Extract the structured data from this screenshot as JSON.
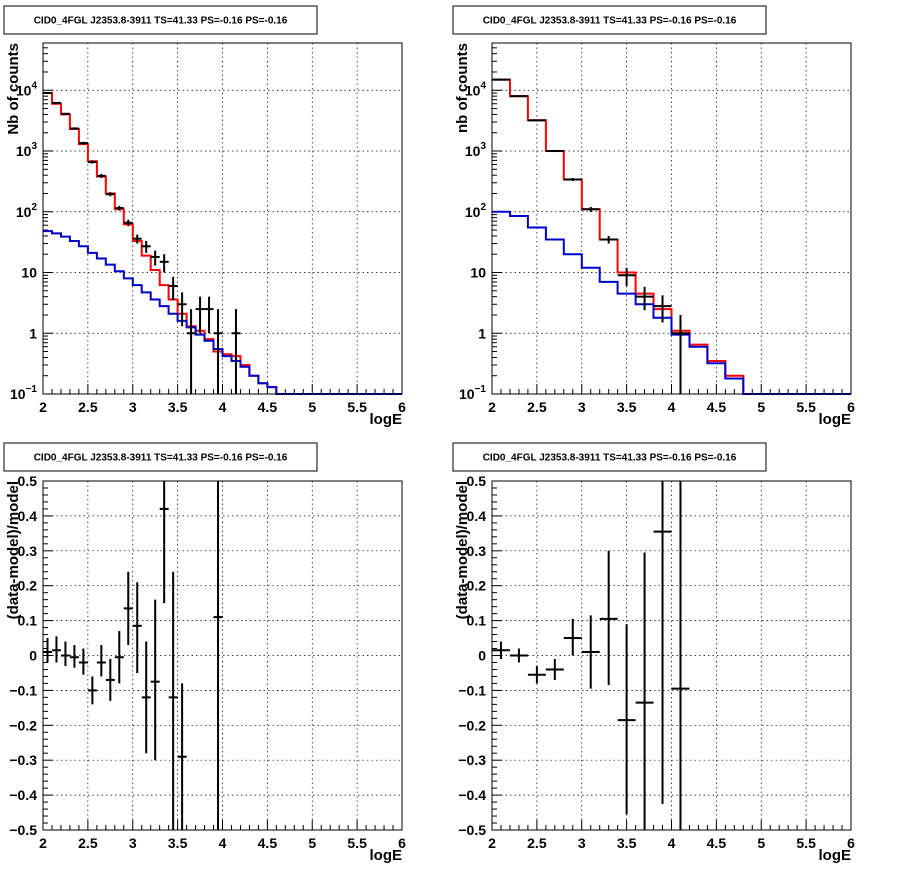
{
  "chart_data": [
    {
      "type": "line",
      "title": "CID0_4FGL J2353.8-3911 TS=41.33 PS=-0.16 PS=-0.16",
      "xlabel": "logE",
      "ylabel": "Nb of counts",
      "xlim": [
        2,
        6
      ],
      "ylim": [
        0.1,
        60000
      ],
      "yscale": "log",
      "xticks": [
        "2",
        "2.5",
        "3",
        "3.5",
        "4",
        "4.5",
        "5",
        "5.5",
        "6"
      ],
      "yticks": [
        {
          "value": 0.1,
          "label": "10",
          "sup": "−1"
        },
        {
          "value": 1,
          "label": "1",
          "sup": ""
        },
        {
          "value": 10,
          "label": "10",
          "sup": ""
        },
        {
          "value": 100,
          "label": "10",
          "sup": "2"
        },
        {
          "value": 1000,
          "label": "10",
          "sup": "3"
        },
        {
          "value": 10000,
          "label": "10",
          "sup": "4"
        }
      ],
      "grid": true,
      "series": [
        {
          "kind": "step",
          "color": "#ff0000",
          "edges": [
            2.0,
            2.1,
            2.2,
            2.3,
            2.4,
            2.5,
            2.6,
            2.7,
            2.8,
            2.9,
            3.0,
            3.1,
            3.2,
            3.3,
            3.4,
            3.5,
            3.6,
            3.7,
            3.8,
            3.9,
            4.0,
            4.1,
            4.2,
            4.3,
            4.4,
            4.5,
            4.6,
            4.7,
            4.8,
            4.9,
            5.0,
            5.1,
            5.2,
            5.3,
            5.4,
            5.5,
            5.6,
            5.7,
            5.8,
            5.9,
            6.0
          ],
          "values": [
            9000,
            6000,
            4000,
            2300,
            1300,
            680,
            380,
            200,
            110,
            62,
            33,
            19,
            11,
            6.2,
            3.6,
            2.1,
            1.3,
            1.1,
            0.8,
            0.5,
            0.45,
            0.42,
            0.3,
            0.2,
            0.15,
            0.13,
            0.1,
            0.1,
            0.1,
            0.1,
            0.1,
            0.1,
            0.1,
            0.1,
            0.1,
            0.1,
            0.1,
            0.1,
            0.1,
            0.1
          ]
        },
        {
          "kind": "step",
          "color": "#0000cc",
          "edges": [
            2.0,
            2.1,
            2.2,
            2.3,
            2.4,
            2.5,
            2.6,
            2.7,
            2.8,
            2.9,
            3.0,
            3.1,
            3.2,
            3.3,
            3.4,
            3.5,
            3.6,
            3.7,
            3.8,
            3.9,
            4.0,
            4.1,
            4.2,
            4.3,
            4.4,
            4.5,
            4.6,
            4.7,
            4.8,
            4.9,
            5.0,
            5.1,
            5.2,
            5.3,
            5.4,
            5.5,
            5.6,
            5.7,
            5.8,
            5.9,
            6.0
          ],
          "values": [
            48,
            44,
            39,
            33,
            27,
            21,
            17,
            13.5,
            10.5,
            8,
            6.2,
            4.7,
            3.6,
            2.8,
            2.1,
            1.6,
            1.25,
            0.95,
            0.75,
            0.55,
            0.42,
            0.35,
            0.28,
            0.2,
            0.15,
            0.13,
            0.1,
            0.1,
            0.1,
            0.1,
            0.1,
            0.1,
            0.1,
            0.1,
            0.1,
            0.1,
            0.1,
            0.1,
            0.1,
            0.1
          ]
        },
        {
          "kind": "errorbars",
          "color": "#000000",
          "x": [
            2.05,
            2.15,
            2.25,
            2.35,
            2.45,
            2.55,
            2.65,
            2.75,
            2.85,
            2.95,
            3.05,
            3.15,
            3.25,
            3.35,
            3.45,
            3.55,
            3.65,
            3.75,
            3.85,
            3.95,
            4.15
          ],
          "y": [
            9000,
            6200,
            4100,
            2350,
            1350,
            660,
            390,
            195,
            115,
            66,
            36,
            27,
            18,
            15,
            6,
            3,
            1,
            2.5,
            2.5,
            1,
            1
          ],
          "ylo": [
            8900,
            6100,
            4000,
            2250,
            1280,
            620,
            360,
            180,
            105,
            58,
            30,
            21,
            13,
            10,
            3.5,
            1.3,
            0.1,
            1,
            1,
            0.1,
            0.1
          ],
          "yhi": [
            9100,
            6300,
            4200,
            2450,
            1420,
            700,
            420,
            210,
            125,
            74,
            42,
            33,
            23,
            20,
            8.5,
            4.7,
            2.5,
            4,
            4,
            2.5,
            2.5
          ],
          "xerr": 0.05
        }
      ]
    },
    {
      "type": "line",
      "title": "CID0_4FGL J2353.8-3911 TS=41.33 PS=-0.16 PS=-0.16",
      "xlabel": "logE",
      "ylabel": "nb of counts",
      "xlim": [
        2,
        6
      ],
      "ylim": [
        0.1,
        60000
      ],
      "yscale": "log",
      "xticks": [
        "2",
        "2.5",
        "3",
        "3.5",
        "4",
        "4.5",
        "5",
        "5.5",
        "6"
      ],
      "yticks": [
        {
          "value": 0.1,
          "label": "10",
          "sup": "−1"
        },
        {
          "value": 1,
          "label": "1",
          "sup": ""
        },
        {
          "value": 10,
          "label": "10",
          "sup": ""
        },
        {
          "value": 100,
          "label": "10",
          "sup": "2"
        },
        {
          "value": 1000,
          "label": "10",
          "sup": "3"
        },
        {
          "value": 10000,
          "label": "10",
          "sup": "4"
        }
      ],
      "grid": true,
      "series": [
        {
          "kind": "step",
          "color": "#ff0000",
          "edges": [
            2.0,
            2.2,
            2.4,
            2.6,
            2.8,
            3.0,
            3.2,
            3.4,
            3.6,
            3.8,
            4.0,
            4.2,
            4.4,
            4.6,
            4.8,
            5.0,
            5.2,
            5.4,
            5.6,
            5.8,
            6.0
          ],
          "values": [
            15000,
            8000,
            3200,
            1000,
            340,
            110,
            35,
            10,
            4.5,
            2.5,
            1.1,
            0.65,
            0.35,
            0.2,
            0.1,
            0.1,
            0.1,
            0.1,
            0.1,
            0.1
          ]
        },
        {
          "kind": "step",
          "color": "#0000cc",
          "edges": [
            2.0,
            2.2,
            2.4,
            2.6,
            2.8,
            3.0,
            3.2,
            3.4,
            3.6,
            3.8,
            4.0,
            4.2,
            4.4,
            4.6,
            4.8,
            5.0,
            5.2,
            5.4,
            5.6,
            5.8,
            6.0
          ],
          "values": [
            100,
            85,
            55,
            35,
            20,
            12,
            7,
            4.5,
            3,
            1.8,
            0.95,
            0.6,
            0.32,
            0.18,
            0.1,
            0.1,
            0.1,
            0.1,
            0.1,
            0.1
          ]
        },
        {
          "kind": "errorbars",
          "color": "#000000",
          "x": [
            2.1,
            2.3,
            2.5,
            2.7,
            2.9,
            3.1,
            3.3,
            3.5,
            3.7,
            3.9,
            4.1
          ],
          "y": [
            15000,
            8000,
            3200,
            1000,
            340,
            110,
            35,
            9,
            4,
            2.8,
            1
          ],
          "ylo": [
            14800,
            7850,
            3100,
            960,
            320,
            100,
            30,
            6,
            2.4,
            1.5,
            0.1
          ],
          "yhi": [
            15200,
            8150,
            3300,
            1040,
            360,
            120,
            40,
            12,
            5.8,
            4.2,
            2
          ],
          "xerr": 0.1
        }
      ]
    },
    {
      "type": "scatter",
      "title": "CID0_4FGL J2353.8-3911 TS=41.33 PS=-0.16 PS=-0.16",
      "xlabel": "logE",
      "ylabel": "(data-model)/model",
      "xlim": [
        2,
        6
      ],
      "ylim": [
        -0.5,
        0.5
      ],
      "yscale": "linear",
      "xticks": [
        "2",
        "2.5",
        "3",
        "3.5",
        "4",
        "4.5",
        "5",
        "5.5",
        "6"
      ],
      "yticks": [
        {
          "value": -0.5,
          "label": "−0.5",
          "sup": ""
        },
        {
          "value": -0.4,
          "label": "−0.4",
          "sup": ""
        },
        {
          "value": -0.3,
          "label": "−0.3",
          "sup": ""
        },
        {
          "value": -0.2,
          "label": "−0.2",
          "sup": ""
        },
        {
          "value": -0.1,
          "label": "−0.1",
          "sup": ""
        },
        {
          "value": 0,
          "label": "0",
          "sup": ""
        },
        {
          "value": 0.1,
          "label": "0.1",
          "sup": ""
        },
        {
          "value": 0.2,
          "label": "0.2",
          "sup": ""
        },
        {
          "value": 0.3,
          "label": "0.3",
          "sup": ""
        },
        {
          "value": 0.4,
          "label": "0.4",
          "sup": ""
        },
        {
          "value": 0.5,
          "label": "0.5",
          "sup": ""
        }
      ],
      "grid": true,
      "series": [
        {
          "kind": "errorbars",
          "color": "#000000",
          "x": [
            2.05,
            2.15,
            2.25,
            2.35,
            2.45,
            2.55,
            2.65,
            2.75,
            2.85,
            2.95,
            3.05,
            3.15,
            3.25,
            3.35,
            3.45,
            3.55,
            3.95
          ],
          "y": [
            0.01,
            0.015,
            0.0,
            -0.005,
            -0.02,
            -0.1,
            -0.02,
            -0.07,
            -0.005,
            0.135,
            0.085,
            -0.12,
            -0.075,
            0.42,
            -0.12,
            -0.29,
            0.11
          ],
          "ylo": [
            -0.02,
            -0.02,
            -0.03,
            -0.035,
            -0.055,
            -0.14,
            -0.06,
            -0.13,
            -0.08,
            0.03,
            -0.05,
            -0.28,
            -0.3,
            0.15,
            -0.5,
            -0.5,
            -0.5
          ],
          "yhi": [
            0.05,
            0.055,
            0.04,
            0.03,
            0.02,
            -0.06,
            0.03,
            -0.01,
            0.07,
            0.24,
            0.21,
            0.04,
            0.16,
            0.5,
            0.24,
            -0.08,
            0.5
          ],
          "xerr": 0.05
        }
      ]
    },
    {
      "type": "scatter",
      "title": "CID0_4FGL J2353.8-3911 TS=41.33 PS=-0.16 PS=-0.16",
      "xlabel": "logE",
      "ylabel": "(data-model)/model",
      "xlim": [
        2,
        6
      ],
      "ylim": [
        -0.5,
        0.5
      ],
      "yscale": "linear",
      "xticks": [
        "2",
        "2.5",
        "3",
        "3.5",
        "4",
        "4.5",
        "5",
        "5.5",
        "6"
      ],
      "yticks": [
        {
          "value": -0.5,
          "label": "−0.5",
          "sup": ""
        },
        {
          "value": -0.4,
          "label": "−0.4",
          "sup": ""
        },
        {
          "value": -0.3,
          "label": "−0.3",
          "sup": ""
        },
        {
          "value": -0.2,
          "label": "−0.2",
          "sup": ""
        },
        {
          "value": -0.1,
          "label": "−0.1",
          "sup": ""
        },
        {
          "value": 0,
          "label": "0",
          "sup": ""
        },
        {
          "value": 0.1,
          "label": "0.1",
          "sup": ""
        },
        {
          "value": 0.2,
          "label": "0.2",
          "sup": ""
        },
        {
          "value": 0.3,
          "label": "0.3",
          "sup": ""
        },
        {
          "value": 0.4,
          "label": "0.4",
          "sup": ""
        },
        {
          "value": 0.5,
          "label": "0.5",
          "sup": ""
        }
      ],
      "grid": true,
      "series": [
        {
          "kind": "errorbars",
          "color": "#000000",
          "x": [
            2.1,
            2.3,
            2.5,
            2.7,
            2.9,
            3.1,
            3.3,
            3.5,
            3.7,
            3.9,
            4.1
          ],
          "y": [
            0.015,
            0.0,
            -0.055,
            -0.04,
            0.05,
            0.01,
            0.105,
            -0.185,
            -0.135,
            0.355,
            -0.095
          ],
          "ylo": [
            -0.01,
            -0.02,
            -0.08,
            -0.07,
            0.0,
            -0.095,
            -0.085,
            -0.455,
            -0.5,
            -0.425,
            -0.5
          ],
          "yhi": [
            0.04,
            0.02,
            -0.03,
            -0.01,
            0.105,
            0.115,
            0.3,
            0.09,
            0.295,
            0.5,
            0.5
          ],
          "xerr": 0.1
        }
      ]
    }
  ]
}
